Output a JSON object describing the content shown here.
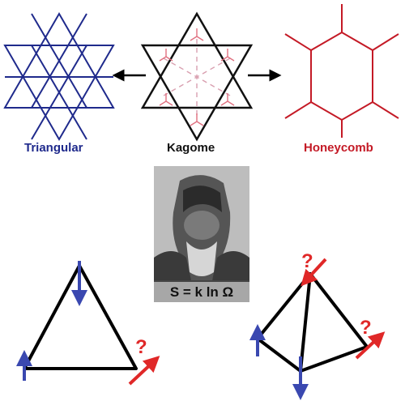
{
  "labels": {
    "triangular": "Triangular",
    "kagome": "Kagome",
    "honeycomb": "Honeycomb"
  },
  "equation": "S = k ln Ω",
  "question_mark": "?",
  "colors": {
    "triangular": "#1f2a8c",
    "kagome": "#111111",
    "honeycomb": "#c41a26",
    "spin_up": "#3a48b0",
    "spin_frustrated": "#e02828"
  }
}
